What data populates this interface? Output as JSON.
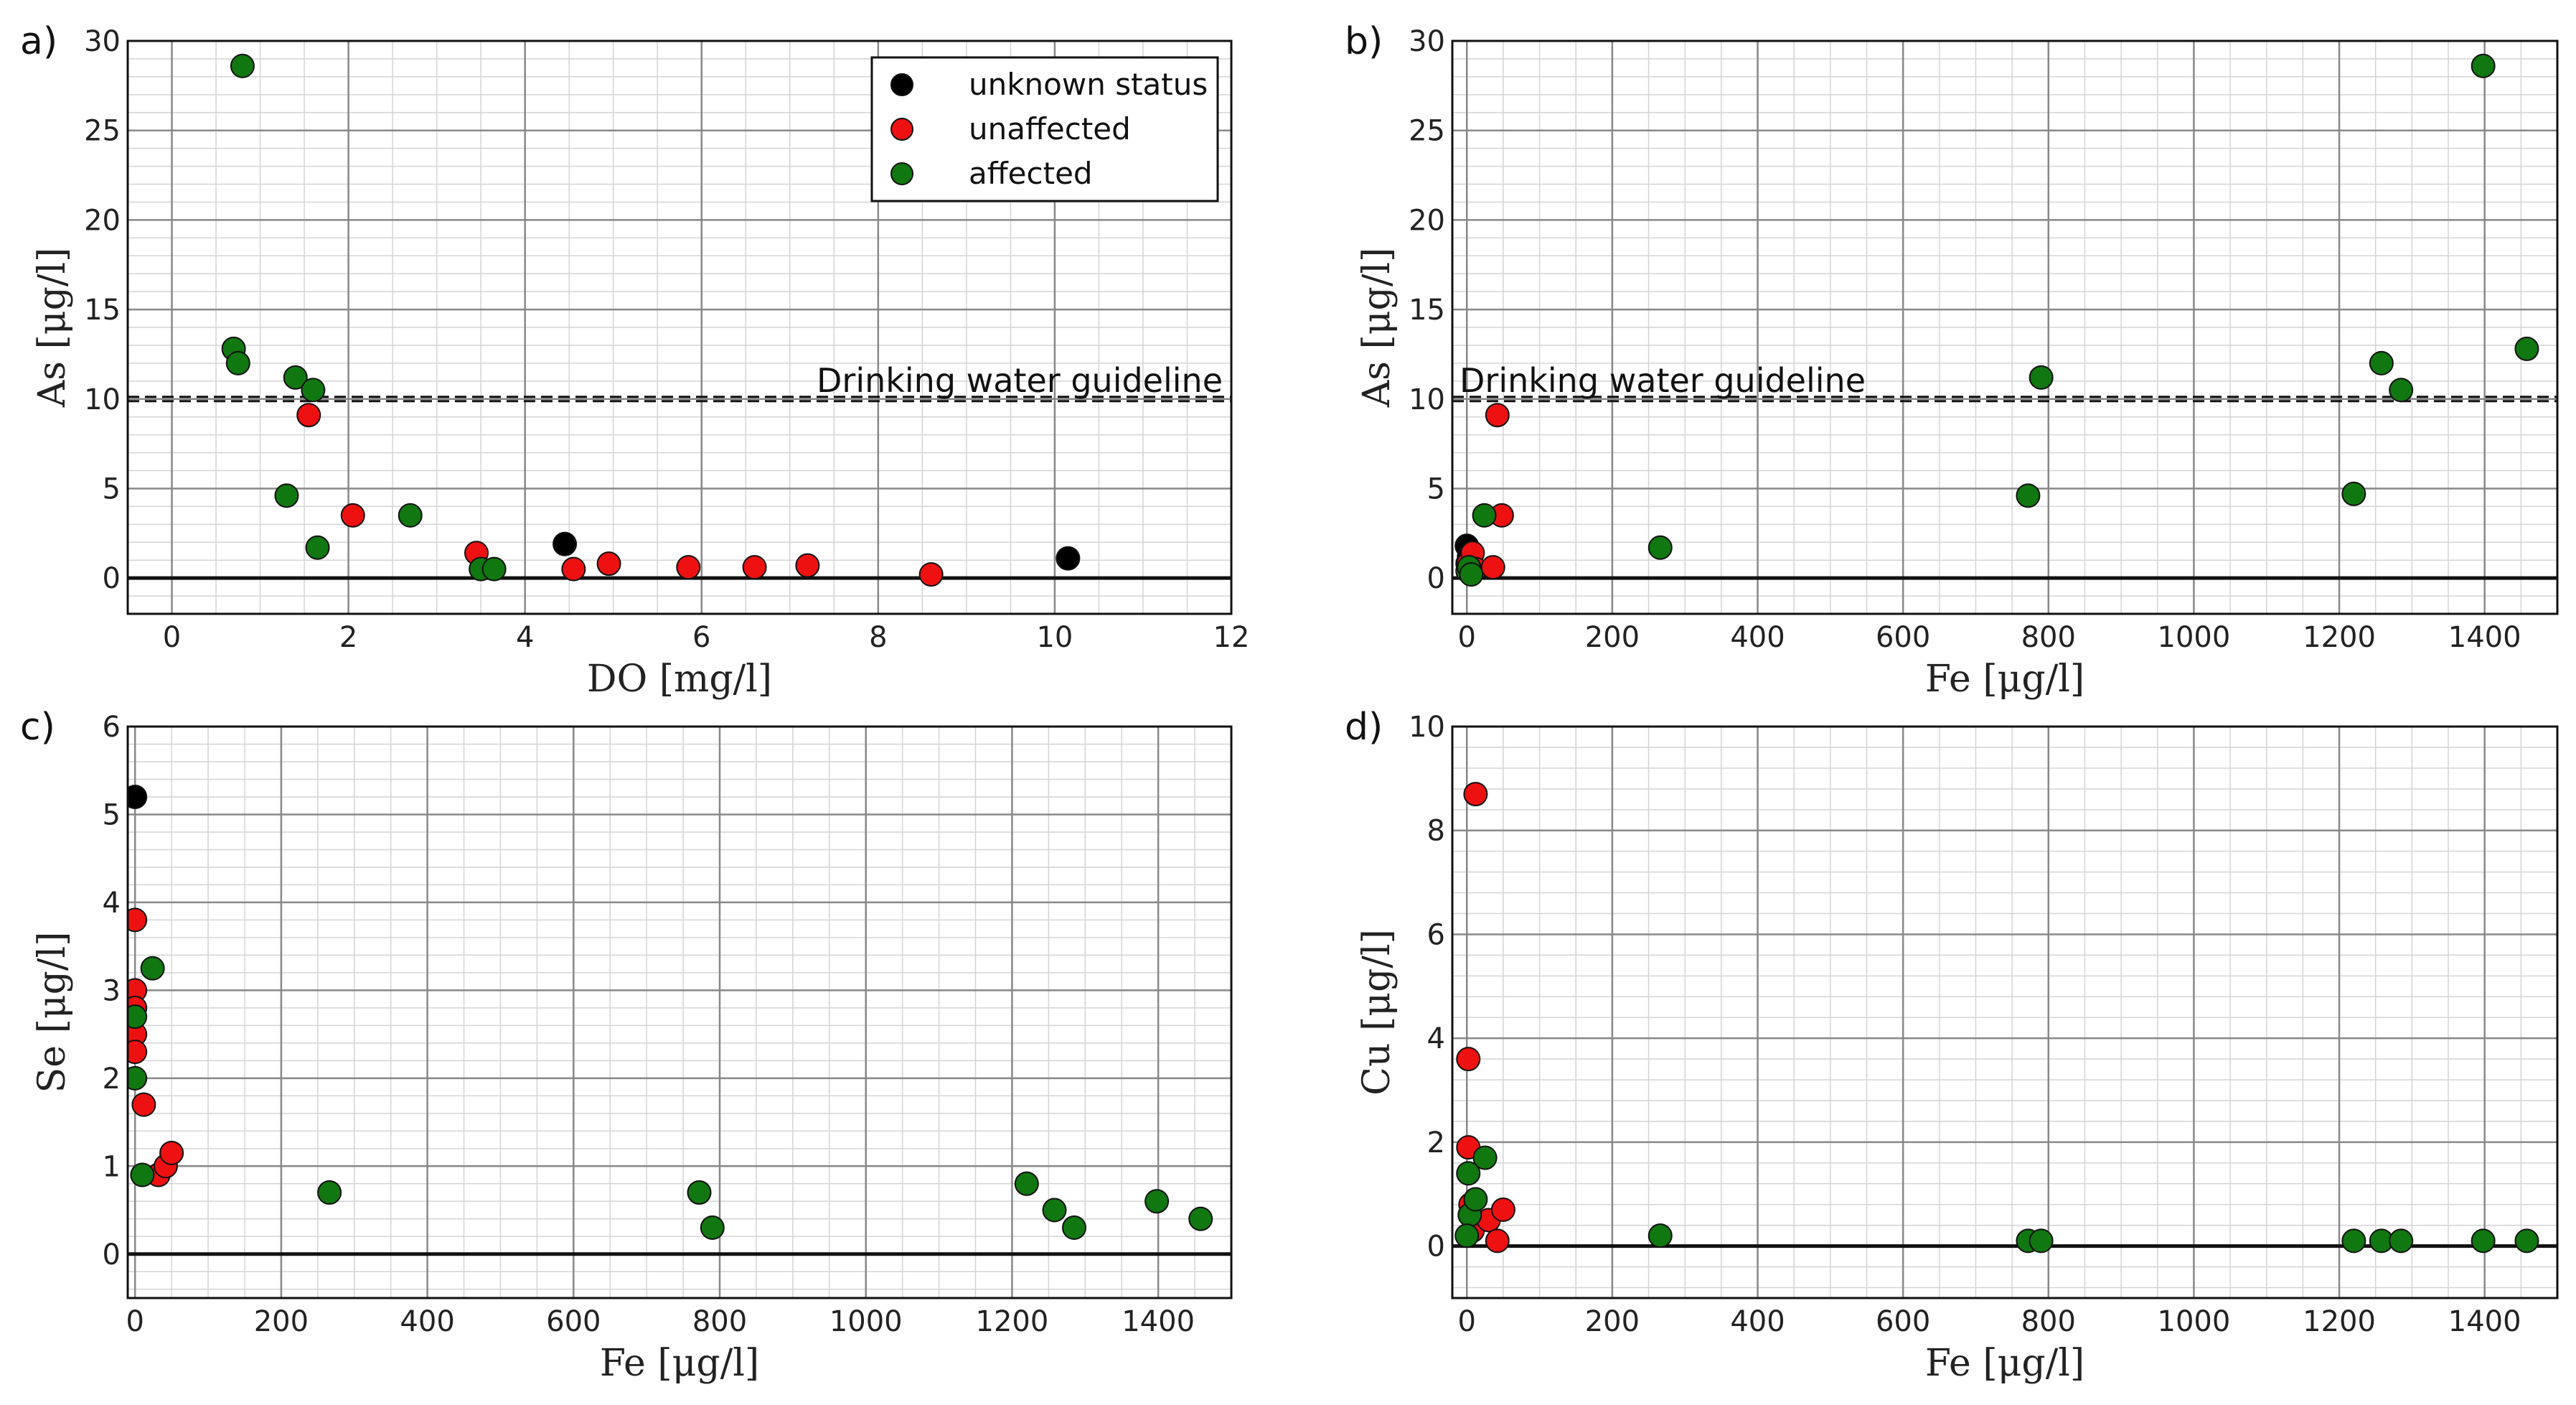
{
  "colors": {
    "unknown": "#000000",
    "unaffected": "#ee1111",
    "affected": "#117711",
    "major_grid": "#888888",
    "minor_grid": "#d4d4d4"
  },
  "legend": {
    "entries": [
      {
        "key": "unknown",
        "label": "unknown status"
      },
      {
        "key": "unaffected",
        "label": "unaffected"
      },
      {
        "key": "affected",
        "label": "affected"
      }
    ]
  },
  "chart_data": [
    {
      "panel_label": "a)",
      "type": "scatter",
      "xlabel": "DO [mg/l]",
      "ylabel": "As [μg/l]",
      "xlim": [
        -0.5,
        12
      ],
      "ylim": [
        -2,
        30
      ],
      "xticks": [
        0,
        2,
        4,
        6,
        8,
        10,
        12
      ],
      "yticks": [
        0,
        5,
        10,
        15,
        20,
        25,
        30
      ],
      "xminor": 0.5,
      "yminor": 1,
      "guideline": {
        "y": 10,
        "label": "Drinking water guideline"
      },
      "series": [
        {
          "name": "unknown",
          "x": [
            4.45,
            10.15
          ],
          "y": [
            1.9,
            1.1
          ]
        },
        {
          "name": "unaffected",
          "x": [
            1.55,
            2.05,
            3.45,
            4.55,
            4.95,
            5.85,
            6.6,
            7.2,
            8.6
          ],
          "y": [
            9.1,
            3.5,
            1.4,
            0.5,
            0.8,
            0.6,
            0.6,
            0.7,
            0.2
          ]
        },
        {
          "name": "affected",
          "x": [
            0.8,
            0.7,
            0.75,
            1.4,
            1.6,
            1.3,
            1.65,
            2.7,
            3.5,
            3.65
          ],
          "y": [
            28.6,
            12.8,
            12.0,
            11.2,
            10.5,
            4.6,
            1.7,
            3.5,
            0.5,
            0.5
          ]
        }
      ]
    },
    {
      "panel_label": "b)",
      "type": "scatter",
      "xlabel": "Fe [μg/l]",
      "ylabel": "As [μg/l]",
      "xlim": [
        -20,
        1500
      ],
      "ylim": [
        -2,
        30
      ],
      "xticks": [
        0,
        200,
        400,
        600,
        800,
        1000,
        1200,
        1400
      ],
      "yticks": [
        0,
        5,
        10,
        15,
        20,
        25,
        30
      ],
      "xminor": 50,
      "yminor": 1,
      "guideline": {
        "y": 10,
        "label": "Drinking water guideline"
      },
      "series": [
        {
          "name": "unknown",
          "x": [
            0,
            3,
            1
          ],
          "y": [
            1.8,
            1.2,
            0.8
          ]
        },
        {
          "name": "unaffected",
          "x": [
            2,
            8,
            12,
            36,
            42,
            48
          ],
          "y": [
            0.8,
            1.4,
            0.5,
            0.6,
            9.1,
            3.5
          ]
        },
        {
          "name": "affected",
          "x": [
            1,
            3,
            6,
            24,
            266,
            772,
            790,
            1220,
            1258,
            1285,
            1398,
            1458
          ],
          "y": [
            0.4,
            0.6,
            0.2,
            3.5,
            1.7,
            4.6,
            11.2,
            4.7,
            12.0,
            10.5,
            28.6,
            12.8
          ]
        }
      ]
    },
    {
      "panel_label": "c)",
      "type": "scatter",
      "xlabel": "Fe [μg/l]",
      "ylabel": "Se [μg/l]",
      "xlim": [
        -10,
        1500
      ],
      "ylim": [
        -0.5,
        6
      ],
      "xticks": [
        0,
        200,
        400,
        600,
        800,
        1000,
        1200,
        1400
      ],
      "yticks": [
        0,
        1,
        2,
        3,
        4,
        5,
        6
      ],
      "xminor": 50,
      "yminor": 0.2,
      "series": [
        {
          "name": "unknown",
          "x": [
            0
          ],
          "y": [
            5.2
          ]
        },
        {
          "name": "unaffected",
          "x": [
            0,
            0,
            0,
            0,
            0,
            12,
            32,
            42,
            50
          ],
          "y": [
            3.8,
            3.0,
            2.8,
            2.5,
            2.3,
            1.7,
            0.9,
            1.0,
            1.15
          ]
        },
        {
          "name": "affected",
          "x": [
            0,
            0,
            24,
            10,
            266,
            772,
            790,
            1220,
            1258,
            1285,
            1398,
            1458
          ],
          "y": [
            2.7,
            2.0,
            3.25,
            0.9,
            0.7,
            0.7,
            0.3,
            0.8,
            0.5,
            0.3,
            0.6,
            0.4
          ]
        }
      ]
    },
    {
      "panel_label": "d)",
      "type": "scatter",
      "xlabel": "Fe [μg/l]",
      "ylabel": "Cu [μg/l]",
      "xlim": [
        -20,
        1500
      ],
      "ylim": [
        -1,
        10
      ],
      "xticks": [
        0,
        200,
        400,
        600,
        800,
        1000,
        1200,
        1400
      ],
      "yticks": [
        0,
        2,
        4,
        6,
        8,
        10
      ],
      "xminor": 50,
      "yminor": 0.4,
      "series": [
        {
          "name": "unaffected",
          "x": [
            12,
            2,
            2,
            5,
            8,
            30,
            42,
            50
          ],
          "y": [
            8.7,
            3.6,
            1.9,
            0.8,
            0.3,
            0.5,
            0.1,
            0.7
          ]
        },
        {
          "name": "affected",
          "x": [
            2,
            4,
            12,
            25,
            0,
            266,
            772,
            790,
            1220,
            1258,
            1285,
            1398,
            1458
          ],
          "y": [
            1.4,
            0.6,
            0.9,
            1.7,
            0.2,
            0.2,
            0.1,
            0.1,
            0.1,
            0.1,
            0.1,
            0.1,
            0.1
          ]
        }
      ]
    }
  ]
}
